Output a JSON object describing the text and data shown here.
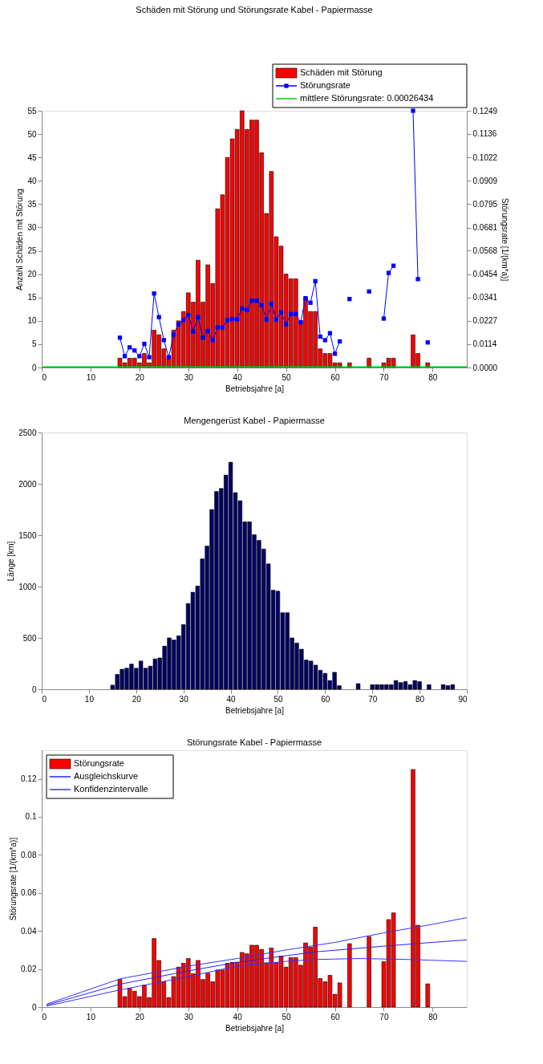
{
  "chart_data": [
    {
      "type": "bar",
      "title": "Schäden mit Störung und Störungsrate Kabel - Papiermasse",
      "xlabel": "Betriebsjahre [a]",
      "ylabel": "Anzahl Schäden mit Störung",
      "y2label": "Störungsrate [1/(km*a)]",
      "x": [
        16,
        17,
        18,
        19,
        20,
        21,
        22,
        23,
        24,
        25,
        26,
        27,
        28,
        29,
        30,
        31,
        32,
        33,
        34,
        35,
        36,
        37,
        38,
        39,
        40,
        41,
        42,
        43,
        44,
        45,
        46,
        47,
        48,
        49,
        50,
        51,
        52,
        53,
        54,
        55,
        56,
        57,
        58,
        59,
        60,
        61,
        62,
        63,
        64,
        65,
        66,
        67,
        68,
        69,
        70,
        71,
        72,
        73,
        74,
        75,
        76,
        77,
        78,
        79
      ],
      "series": [
        {
          "name": "Schäden mit Störung",
          "color": "#ff0000",
          "values": [
            2,
            1,
            2,
            2,
            1,
            3,
            1,
            8,
            7,
            4,
            2,
            8,
            10,
            12,
            16,
            14,
            23,
            14,
            22,
            18,
            34,
            37,
            45,
            49,
            51,
            55,
            51,
            53,
            53,
            46,
            33,
            42,
            28,
            26,
            20,
            19,
            19,
            10,
            15,
            12,
            12,
            4,
            3,
            3,
            1,
            1,
            null,
            1,
            null,
            null,
            null,
            2,
            null,
            null,
            1,
            2,
            2,
            null,
            null,
            null,
            7,
            3,
            null,
            1
          ]
        },
        {
          "name": "Störungsrate",
          "type": "line",
          "axis": "y2",
          "color": "#0000ff",
          "marker": "square",
          "values": [
            0.0145,
            0.0055,
            0.0098,
            0.0083,
            0.0055,
            0.0115,
            0.005,
            0.036,
            0.0245,
            0.0133,
            0.005,
            0.016,
            0.021,
            0.023,
            0.0255,
            0.0175,
            0.0245,
            0.0145,
            0.0178,
            0.0133,
            0.0195,
            0.0195,
            0.023,
            0.0235,
            0.0235,
            0.0287,
            0.028,
            0.0325,
            0.0325,
            0.0303,
            0.0233,
            0.031,
            0.0233,
            0.0268,
            0.021,
            0.026,
            0.026,
            0.022,
            0.0337,
            0.0315,
            0.042,
            0.015,
            0.0133,
            0.0167,
            0.0067,
            0.0127,
            null,
            0.0333,
            null,
            null,
            null,
            0.037,
            null,
            null,
            0.0238,
            0.046,
            0.0495,
            null,
            null,
            null,
            0.1249,
            0.043,
            null,
            0.0122
          ]
        }
      ],
      "ref_lines": [
        {
          "axis": "y2",
          "value": 0.00026434,
          "label": "mittlere Störungsrate: 0.00026434",
          "color": "#00cc00"
        }
      ],
      "xlim": [
        0,
        87
      ],
      "xticks": [
        0,
        10,
        20,
        30,
        40,
        50,
        60,
        70,
        80
      ],
      "ylim": [
        0,
        55
      ],
      "yticks": [
        0,
        5,
        10,
        15,
        20,
        25,
        30,
        35,
        40,
        45,
        50,
        55
      ],
      "y2lim": [
        0,
        0.1249
      ],
      "y2ticks": [
        {
          "value": 0,
          "label": "0.0000"
        },
        0.0114,
        0.0227,
        0.0341,
        0.0454,
        0.0568,
        0.0681,
        0.0795,
        0.0909,
        0.1022,
        0.1136,
        0.1249
      ],
      "legend": "top"
    },
    {
      "type": "bar",
      "title": "Mengengerüst Kabel - Papiermasse",
      "xlabel": "Betriebsjahre [a]",
      "ylabel": "Länge [km]",
      "x": [
        15,
        16,
        17,
        18,
        19,
        20,
        21,
        22,
        23,
        24,
        25,
        26,
        27,
        28,
        29,
        30,
        31,
        32,
        33,
        34,
        35,
        36,
        37,
        38,
        39,
        40,
        41,
        42,
        43,
        44,
        45,
        46,
        47,
        48,
        49,
        50,
        51,
        52,
        53,
        54,
        55,
        56,
        57,
        58,
        59,
        60,
        61,
        62,
        63,
        64,
        65,
        66,
        67,
        68,
        69,
        70,
        71,
        72,
        73,
        74,
        75,
        76,
        77,
        78,
        79,
        80,
        81,
        82,
        83,
        84,
        85,
        86,
        87
      ],
      "series": [
        {
          "color": "#000066",
          "values": [
            40,
            145,
            195,
            205,
            245,
            205,
            275,
            205,
            225,
            295,
            305,
            420,
            500,
            480,
            520,
            630,
            835,
            945,
            1005,
            1270,
            1395,
            1750,
            1925,
            1955,
            2085,
            2210,
            1915,
            1835,
            1630,
            1630,
            1505,
            1450,
            1365,
            1220,
            965,
            955,
            745,
            745,
            500,
            450,
            390,
            285,
            275,
            235,
            185,
            155,
            85,
            165,
            35,
            null,
            null,
            null,
            55,
            null,
            null,
            45,
            45,
            45,
            45,
            45,
            85,
            65,
            75,
            45,
            85,
            75,
            null,
            45,
            null,
            null,
            45,
            35,
            45
          ]
        }
      ],
      "xlim": [
        0,
        90
      ],
      "xticks": [
        0,
        10,
        20,
        30,
        40,
        50,
        60,
        70,
        80,
        90
      ],
      "ylim": [
        0,
        2500
      ],
      "yticks": [
        0,
        500,
        1000,
        1500,
        2000,
        2500
      ]
    },
    {
      "type": "bar",
      "title": "Störungsrate Kabel - Papiermasse",
      "xlabel": "Betriebsjahre [a]",
      "ylabel": "Störungsrate [1/(km*a)]",
      "x": [
        16,
        17,
        18,
        19,
        20,
        21,
        22,
        23,
        24,
        25,
        26,
        27,
        28,
        29,
        30,
        31,
        32,
        33,
        34,
        35,
        36,
        37,
        38,
        39,
        40,
        41,
        42,
        43,
        44,
        45,
        46,
        47,
        48,
        49,
        50,
        51,
        52,
        53,
        54,
        55,
        56,
        57,
        58,
        59,
        60,
        61,
        62,
        63,
        64,
        65,
        66,
        67,
        68,
        69,
        70,
        71,
        72,
        73,
        74,
        75,
        76,
        77,
        78,
        79
      ],
      "series": [
        {
          "name": "Störungsrate",
          "color": "#ff0000",
          "values": [
            0.0145,
            0.0055,
            0.0098,
            0.0083,
            0.0055,
            0.0115,
            0.005,
            0.036,
            0.0245,
            0.0133,
            0.005,
            0.016,
            0.021,
            0.023,
            0.0255,
            0.0175,
            0.0245,
            0.0145,
            0.0178,
            0.0133,
            0.0195,
            0.0195,
            0.023,
            0.0235,
            0.0235,
            0.0287,
            0.028,
            0.0325,
            0.0325,
            0.0303,
            0.0233,
            0.031,
            0.0233,
            0.0268,
            0.021,
            0.026,
            0.026,
            0.022,
            0.0337,
            0.0315,
            0.042,
            0.015,
            0.0133,
            0.0167,
            0.0067,
            0.0127,
            null,
            0.0333,
            null,
            null,
            null,
            0.037,
            null,
            null,
            0.0238,
            0.046,
            0.0495,
            null,
            null,
            null,
            0.1249,
            0.043,
            null,
            0.0122
          ]
        },
        {
          "name": "Ausgleichskurve",
          "type": "line",
          "color": "#2222ff",
          "x": [
            1,
            16,
            30,
            40,
            50,
            56,
            70,
            80,
            87
          ],
          "values": [
            0.001,
            0.012,
            0.019,
            0.0235,
            0.027,
            0.029,
            0.032,
            0.034,
            0.0353
          ]
        },
        {
          "name": "Konfidenzintervalle",
          "type": "line",
          "color": "#3333ff",
          "x": [
            1,
            16,
            30,
            40,
            50,
            60,
            70,
            80,
            87
          ],
          "values": [
            0.0015,
            0.0148,
            0.0215,
            0.0255,
            0.03,
            0.034,
            0.039,
            0.0435,
            0.047
          ]
        },
        {
          "type": "line",
          "color": "#3333ff",
          "x": [
            1,
            16,
            30,
            40,
            50,
            56,
            65,
            75,
            87
          ],
          "values": [
            0.0005,
            0.009,
            0.016,
            0.0215,
            0.024,
            0.025,
            0.0255,
            0.025,
            0.024
          ]
        }
      ],
      "xlim": [
        0,
        87
      ],
      "xticks": [
        0,
        10,
        20,
        30,
        40,
        50,
        60,
        70,
        80
      ],
      "ylim": [
        0,
        0.135
      ],
      "yticks": [
        0,
        0.02,
        0.04,
        0.06,
        0.08,
        0.1,
        0.12
      ],
      "legend": "top left"
    }
  ]
}
